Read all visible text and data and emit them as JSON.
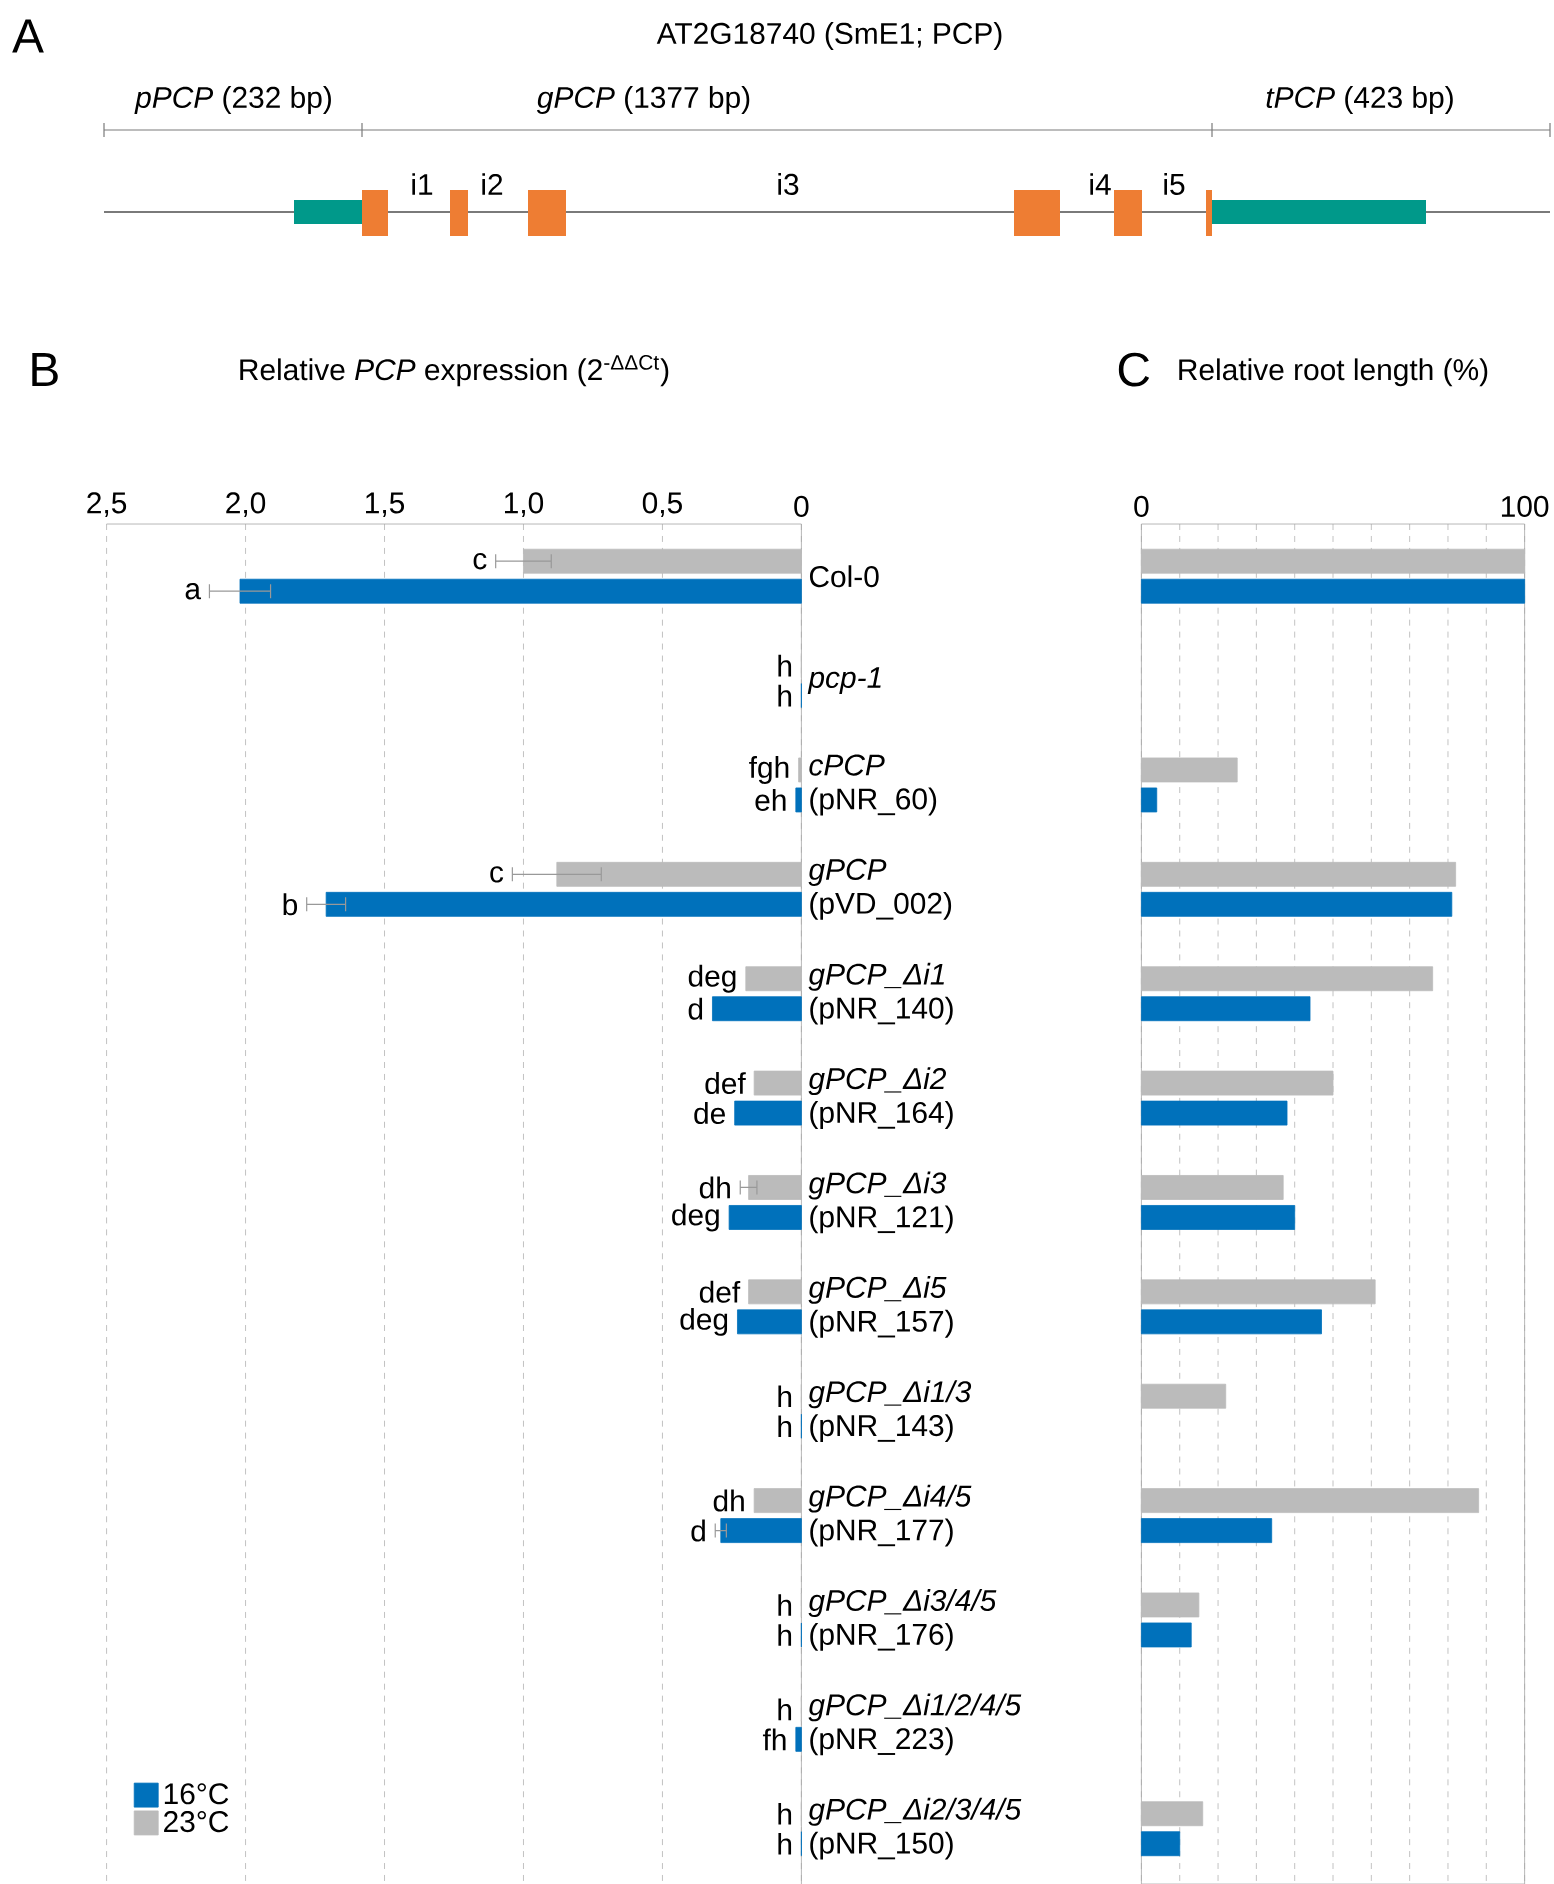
{
  "chart_data": [
    {
      "type": "other",
      "title": "AT2G18740 (SmE1; PCP)",
      "annotations": [
        "A",
        "*pPCP* (232 bp)",
        "*gPCP* (1377 bp)",
        "*tPCP* (423 bp)",
        "i1",
        "i2",
        "i3",
        "i4",
        "i5"
      ]
    },
    {
      "type": "bar",
      "orientation": "horizontal",
      "xlabel": "Relative *PCP* expression (2$^{-ΔΔCt}$)",
      "annotations": [
        "B"
      ],
      "categories": [
        "Col-0",
        "*pcp-1*",
        "*cPCP* (pNR_60)",
        "*gPCP* (pVD_002)",
        "*gPCP_Δi1* (pNR_140)",
        "*gPCP_Δi2* (pNR_164)",
        "*gPCP_Δi3* (pNR_121)",
        "*gPCP_Δi5* (pNR_157)",
        "*gPCP_Δi1/3* (pNR_143)",
        "*gPCP_Δi4/5* (pNR_177)",
        "*gPCP_Δi3/4/5* (pNR_176)",
        "*gPCP_Δi1/2/4/5* (pNR_223)",
        "*gPCP_Δi2/3/4/5* (pNR_150)"
      ],
      "series": [
        {
          "name": "16°C",
          "color": "#0071bb",
          "values": [
            2.02,
            0,
            0.02,
            1.71,
            0.32,
            0.24,
            0.26,
            0.23,
            0,
            0.29,
            0,
            0.02,
            0
          ],
          "errors": [
            0.11,
            null,
            null,
            0.07,
            null,
            null,
            null,
            null,
            null,
            0.02,
            null,
            null,
            null
          ],
          "value_labels": [
            "a",
            "h",
            "eh",
            "b",
            "d",
            "de",
            "deg",
            "deg",
            "h",
            "d",
            "h",
            "fh",
            "h"
          ]
        },
        {
          "name": "23°C",
          "color": "#bbbbbb",
          "values": [
            1.0,
            0,
            0.01,
            0.88,
            0.2,
            0.17,
            0.19,
            0.19,
            0,
            0.17,
            0,
            0,
            0
          ],
          "errors": [
            0.1,
            null,
            null,
            0.16,
            null,
            null,
            0.03,
            null,
            null,
            null,
            null,
            null,
            null
          ],
          "value_labels": [
            "c",
            "h",
            "fgh",
            "c",
            "deg",
            "def",
            "dh",
            "def",
            "h",
            "dh",
            "h",
            "h",
            "h"
          ]
        }
      ],
      "xlim": [
        2.5,
        0
      ],
      "xticks": [
        {
          "value": 2.5,
          "label": "2,5"
        },
        {
          "value": 2.0,
          "label": "2,0"
        },
        {
          "value": 1.5,
          "label": "1,5"
        },
        {
          "value": 1.0,
          "label": "1,0"
        },
        {
          "value": 0.5,
          "label": "0,5"
        },
        0
      ],
      "grid": "x",
      "legend": "bottom left"
    },
    {
      "type": "bar",
      "orientation": "horizontal",
      "xlabel": "Relative root length (%)",
      "annotations": [
        "C"
      ],
      "categories": [
        null,
        null,
        null,
        null,
        null,
        null,
        null,
        null,
        null,
        null,
        null,
        null,
        null
      ],
      "series": [
        {
          "color": "#0071bb",
          "values": [
            100,
            null,
            4,
            81,
            44,
            38,
            40,
            47,
            null,
            34,
            13,
            null,
            10
          ]
        },
        {
          "color": "#bbbbbb",
          "values": [
            100,
            null,
            25,
            82,
            76,
            50,
            37,
            61,
            22,
            88,
            15,
            null,
            16
          ]
        }
      ],
      "xlim": [
        0,
        100
      ],
      "xticks": [
        0,
        {
          "value": 10,
          "label": null
        },
        {
          "value": 20,
          "label": null
        },
        {
          "value": 30,
          "label": null
        },
        {
          "value": 40,
          "label": null
        },
        {
          "value": 50,
          "label": null
        },
        {
          "value": 60,
          "label": null
        },
        {
          "value": 70,
          "label": null
        },
        {
          "value": 80,
          "label": null
        },
        {
          "value": 90,
          "label": null
        },
        100
      ],
      "grid": "x"
    }
  ]
}
